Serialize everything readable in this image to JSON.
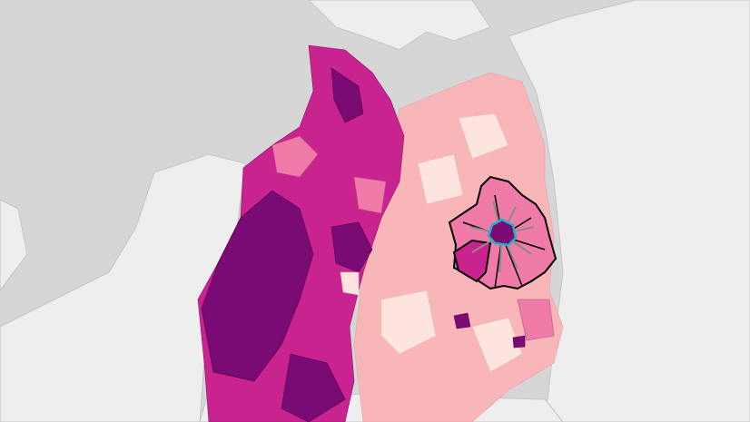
{
  "map": {
    "type": "choropleth",
    "colors": {
      "sea": "#d6d6d6",
      "land": "#eeeeee",
      "border": "#c4c4c4",
      "level_1": "#fde4de",
      "level_2": "#f9b6b8",
      "level_3": "#f07aa8",
      "level_4": "#c8238f",
      "level_5": "#7a0a74",
      "selection_outline": "#000000",
      "selected_center_outline": "#1fb5c0",
      "connector_lines": "#8a8a8a"
    },
    "selected_region": "cluster-east",
    "selected_center": "city-center"
  }
}
